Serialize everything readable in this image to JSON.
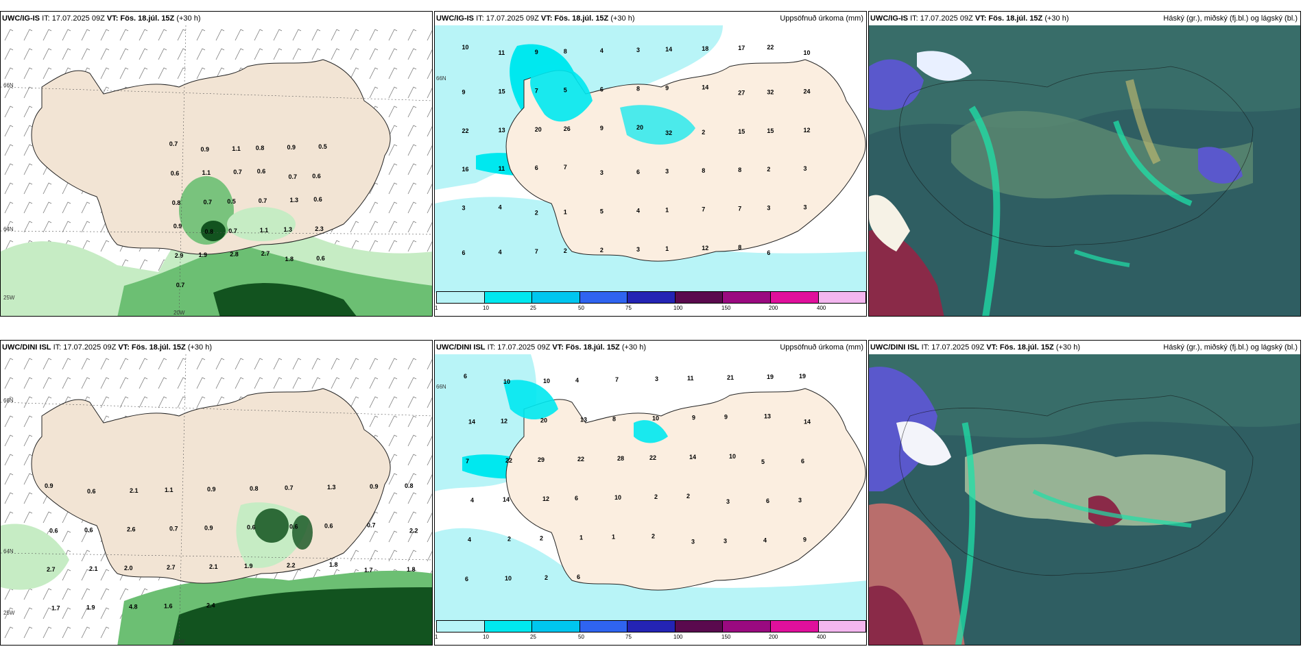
{
  "rows": [
    {
      "model": "UWC/IG-IS",
      "init": "IT: 17.07.2025 09Z",
      "valid": "VT: Fös. 18.júl. 15Z",
      "lead": "(+30 h)",
      "precip_title": "Uppsöfnuð úrkoma (mm)",
      "cloud_title": "Háský (gr.), miðský (fj.bl.) og lágský (bl.)",
      "lat_labels": [
        "66N",
        "64N"
      ],
      "lon_labels": [
        "20W",
        "25W"
      ],
      "wind_values": [
        "0.7",
        "0.9",
        "1.1",
        "0.8",
        "0.9",
        "0.5",
        "0.6",
        "1.1",
        "0.7",
        "0.6",
        "0.7",
        "0.6",
        "0.8",
        "0.7",
        "0.5",
        "0.7",
        "1.3",
        "0.6",
        "0.9",
        "0.8",
        "0.7",
        "1.1",
        "1.3",
        "2.3",
        "2.9",
        "1.9",
        "2.8",
        "2.7",
        "1.8",
        "0.6",
        "0.7"
      ],
      "precip_values": [
        "10",
        "11",
        "9",
        "8",
        "4",
        "3",
        "14",
        "18",
        "17",
        "22",
        "10",
        "9",
        "15",
        "7",
        "5",
        "6",
        "8",
        "9",
        "14",
        "27",
        "32",
        "24",
        "22",
        "13",
        "20",
        "26",
        "9",
        "20",
        "32",
        "2",
        "15",
        "15",
        "12",
        "16",
        "11",
        "6",
        "7",
        "3",
        "6",
        "3",
        "8",
        "8",
        "2",
        "3",
        "3",
        "4",
        "2",
        "1",
        "5",
        "4",
        "1",
        "7",
        "7",
        "3",
        "3",
        "6",
        "4",
        "7",
        "2",
        "2",
        "3",
        "1",
        "12",
        "8",
        "6"
      ]
    },
    {
      "model": "UWC/DINI ISL",
      "init": "IT: 17.07.2025 09Z",
      "valid": "VT: Fös. 18.júl. 15Z",
      "lead": "(+30 h)",
      "precip_title": "Uppsöfnuð úrkoma (mm)",
      "cloud_title": "Háský (gr.), miðský (fj.bl.) og lágský (bl.)",
      "lat_labels": [
        "66N",
        "64N"
      ],
      "lon_labels": [
        "20W",
        "25W"
      ],
      "wind_values": [
        "0.9",
        "0.6",
        "2.1",
        "1.1",
        "0.9",
        "0.8",
        "0.7",
        "1.3",
        "0.9",
        "0.8",
        "0.6",
        "0.6",
        "2.6",
        "0.7",
        "0.9",
        "0.6",
        "0.6",
        "0.6",
        "0.7",
        "2.2",
        "2.7",
        "2.1",
        "2.0",
        "2.7",
        "2.1",
        "1.9",
        "2.2",
        "1.8",
        "1.7",
        "1.8",
        "1.7",
        "1.9",
        "4.8",
        "1.6",
        "2.4"
      ],
      "precip_values": [
        "6",
        "10",
        "10",
        "4",
        "7",
        "3",
        "11",
        "21",
        "19",
        "19",
        "14",
        "12",
        "20",
        "13",
        "8",
        "10",
        "9",
        "9",
        "13",
        "14",
        "7",
        "22",
        "29",
        "22",
        "28",
        "22",
        "14",
        "10",
        "5",
        "6",
        "4",
        "14",
        "12",
        "6",
        "10",
        "2",
        "2",
        "3",
        "6",
        "3",
        "4",
        "2",
        "2",
        "1",
        "1",
        "2",
        "3",
        "3",
        "4",
        "9",
        "6",
        "10",
        "2",
        "6"
      ]
    }
  ],
  "colorbar": {
    "ticks": [
      "1",
      "10",
      "25",
      "50",
      "75",
      "100",
      "150",
      "200",
      "400"
    ],
    "colors": [
      "#b8f4f7",
      "#00e8ef",
      "#00c6ef",
      "#2f64f0",
      "#2424b4",
      "#5a0a4e",
      "#9a0a80",
      "#e0109c",
      "#f3b6ef"
    ]
  },
  "colors": {
    "land": "#f2e4d4",
    "precip_light": "#b8f4f7",
    "wind_green_light": "#c6ecc4",
    "wind_green_mid": "#6cbf73",
    "wind_green_dark": "#12531f",
    "cloud_base": "#2f5e62",
    "cloud_teal": "#1fe0a8",
    "cloud_purple": "#5a58cc",
    "cloud_red": "#8a2a48"
  }
}
